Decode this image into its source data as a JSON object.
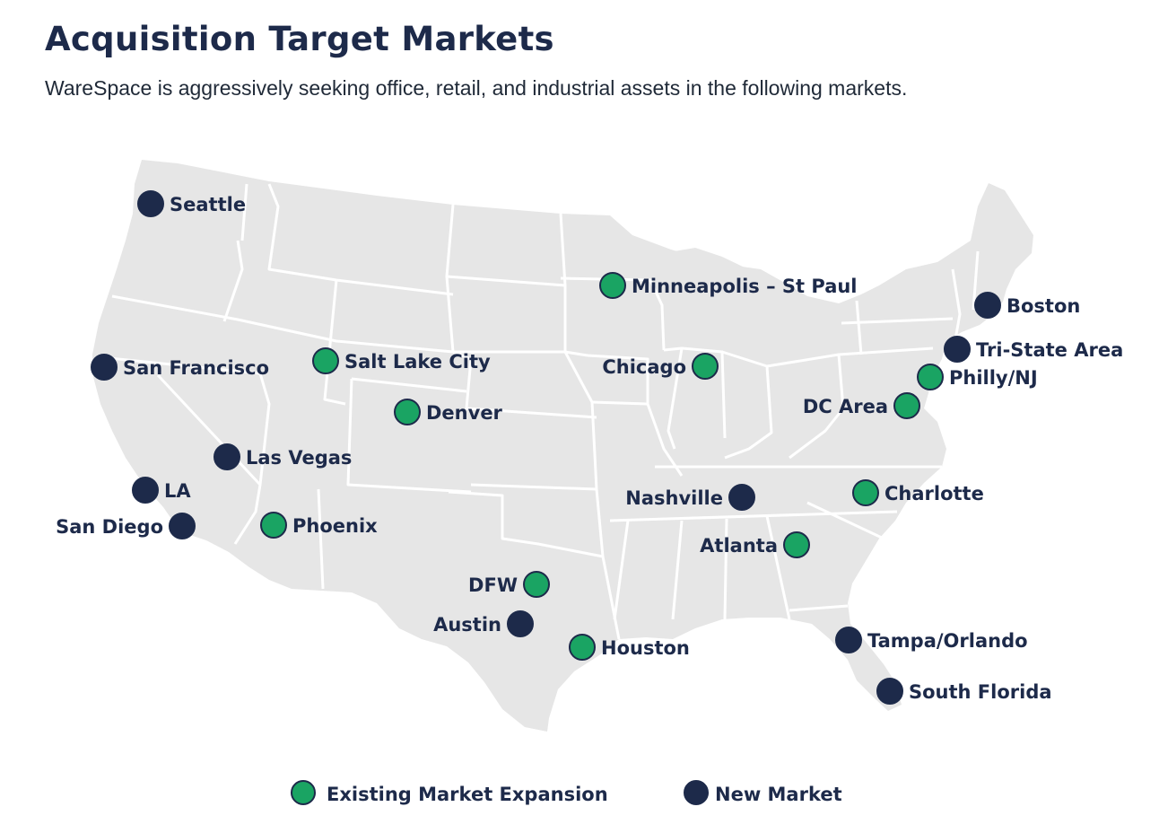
{
  "header": {
    "title": "Acquisition Target Markets",
    "subtitle": "WareSpace is aggressively seeking office, retail, and industrial assets in the following markets."
  },
  "colors": {
    "existing": "#1aa463",
    "new": "#1d2a4a",
    "land": "#e6e6e6",
    "border": "#ffffff",
    "text": "#1d2a4a"
  },
  "markets": [
    {
      "name": "Seattle",
      "type": "new"
    },
    {
      "name": "Minneapolis – St Paul",
      "type": "existing"
    },
    {
      "name": "Boston",
      "type": "new"
    },
    {
      "name": "Tri-State Area",
      "type": "new"
    },
    {
      "name": "Philly/NJ",
      "type": "existing"
    },
    {
      "name": "San Francisco",
      "type": "new"
    },
    {
      "name": "Salt Lake City",
      "type": "existing"
    },
    {
      "name": "Chicago",
      "type": "existing"
    },
    {
      "name": "DC Area",
      "type": "existing"
    },
    {
      "name": "Denver",
      "type": "existing"
    },
    {
      "name": "Las Vegas",
      "type": "new"
    },
    {
      "name": "LA",
      "type": "new"
    },
    {
      "name": "Nashville",
      "type": "new"
    },
    {
      "name": "Charlotte",
      "type": "existing"
    },
    {
      "name": "San Diego",
      "type": "new"
    },
    {
      "name": "Phoenix",
      "type": "existing"
    },
    {
      "name": "Atlanta",
      "type": "existing"
    },
    {
      "name": "DFW",
      "type": "existing"
    },
    {
      "name": "Austin",
      "type": "new"
    },
    {
      "name": "Houston",
      "type": "existing"
    },
    {
      "name": "Tampa/Orlando",
      "type": "new"
    },
    {
      "name": "South Florida",
      "type": "new"
    }
  ],
  "legend": {
    "existing_label": "Existing Market Expansion",
    "new_label": "New Market"
  }
}
